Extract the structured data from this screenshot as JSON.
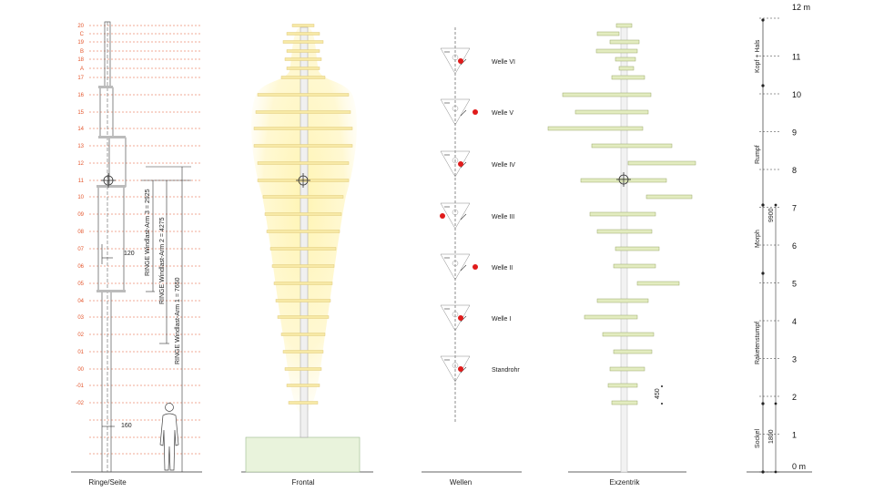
{
  "panels": {
    "ringe": "Ringe/Seite",
    "frontal": "Frontal",
    "wellen": "Wellen",
    "exzentrik": "Exzentrik"
  },
  "level_labels": [
    "20",
    "C",
    "19",
    "B",
    "18",
    "A",
    "17",
    "16",
    "15",
    "14",
    "13",
    "12",
    "11",
    "10",
    "09",
    "08",
    "07",
    "06",
    "05",
    "04",
    "03",
    "02",
    "01",
    "00",
    "-01",
    "-02"
  ],
  "dimensions": {
    "arm3": "RINGE Windlast-Arm 3 = 2925",
    "arm2": "RINGE Windlast-Arm 2 = 4275",
    "arm1": "RINGE Windlast-Arm 1 = 7650",
    "d120": "120",
    "d160": "160",
    "d450": "450",
    "d9900": "9900",
    "d1800": "1800"
  },
  "waves": [
    "Welle VI",
    "Welle V",
    "Welle IV",
    "Welle III",
    "Welle II",
    "Welle I",
    "Standrohr"
  ],
  "scale": {
    "top_unit": "12 m",
    "numbers": [
      "11",
      "10",
      "9",
      "8",
      "7",
      "6",
      "5",
      "4",
      "3",
      "2",
      "1"
    ],
    "bottom_unit": "0 m",
    "sections": [
      "Kopf + Hals",
      "Rumpf",
      "Morph",
      "Raketenstumpf",
      "Sockel"
    ]
  },
  "colors": {
    "accent": "#e4572e",
    "glow": "#fff3a8",
    "ring": "#f7e9a6",
    "ring_green": "#e3ecc0",
    "base": "#e9f3dc",
    "dot": "#e01b1b"
  }
}
